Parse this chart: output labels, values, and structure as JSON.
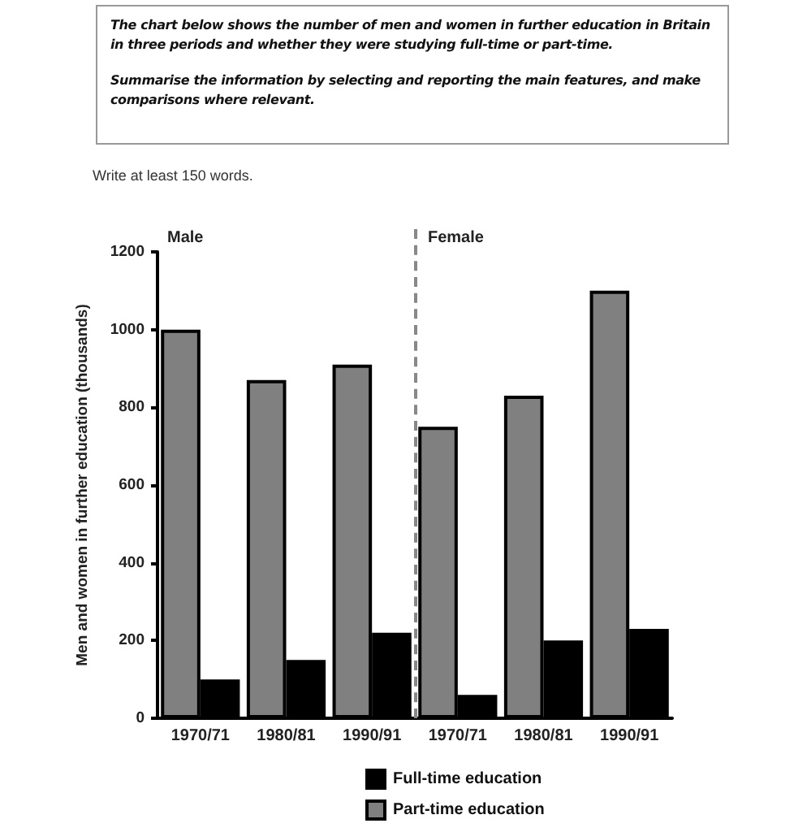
{
  "chart_data": {
    "type": "bar",
    "title": "The chart below shows the number of men and women in further education in Britain in three periods and whether they were studying full-time or part-time.",
    "subtitle": "Summarise the information by selecting and reporting the main features, and make comparisons where relevant.",
    "annotations": [
      "Write at least 150 words.",
      "Male",
      "Female"
    ],
    "ylabel": "Men and women in further education (thousands)",
    "categories": [
      "1970/71",
      "1980/81",
      "1990/91",
      "1970/71",
      "1980/81",
      "1990/91"
    ],
    "series": [
      {
        "name": "Part-time education",
        "color": "#808080",
        "values": [
          1000,
          870,
          910,
          750,
          830,
          1100
        ]
      },
      {
        "name": "Full-time education",
        "color": "#000000",
        "values": [
          100,
          150,
          220,
          60,
          200,
          230
        ]
      }
    ],
    "ylim": [
      0,
      1200
    ],
    "yticks": [
      0,
      200,
      400,
      600,
      800,
      1000,
      1200
    ],
    "grid": false,
    "legend": "bottom"
  }
}
